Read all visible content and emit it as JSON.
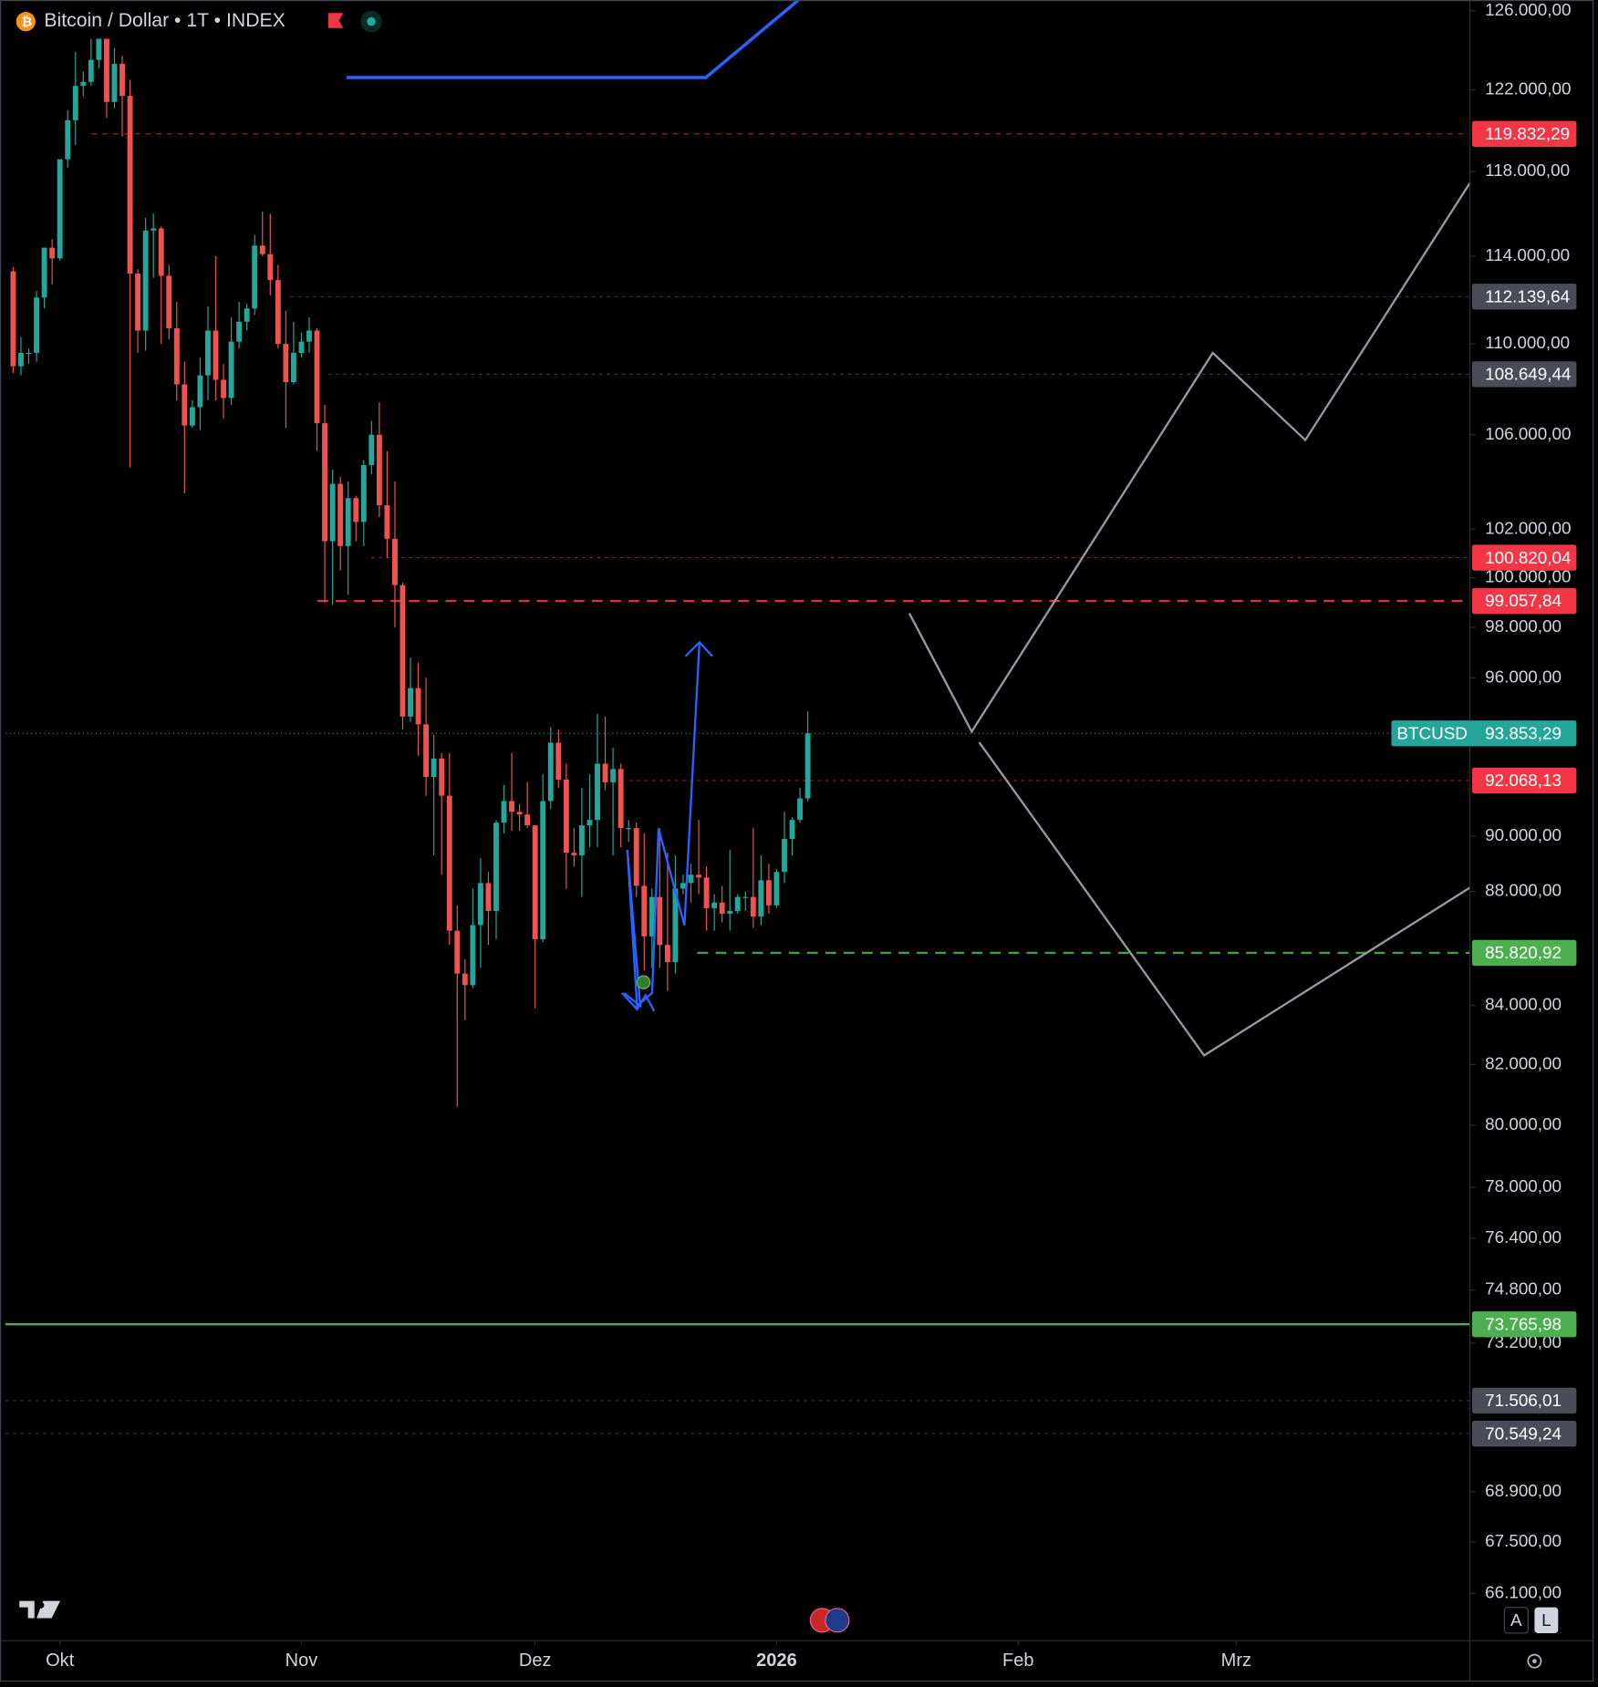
{
  "chart_data": {
    "type": "candlestick",
    "title": "Bitcoin / Dollar • 1T • INDEX",
    "log_scale": true,
    "grid": false,
    "up_color": "#26a69a",
    "down_color": "#ef5350",
    "xlim": [
      -1,
      187
    ],
    "xticks": [
      {
        "value": 6,
        "label": "Okt"
      },
      {
        "value": 37,
        "label": "Nov"
      },
      {
        "value": 67,
        "label": "Dez"
      },
      {
        "value": 98,
        "label": "2026"
      },
      {
        "value": 129,
        "label": "Feb"
      },
      {
        "value": 157,
        "label": "Mrz"
      }
    ],
    "ylim": [
      64840,
      126550
    ],
    "yticks": [
      {
        "value": 126000,
        "label": "126.000,00"
      },
      {
        "value": 122000,
        "label": "122.000,00"
      },
      {
        "value": 118000,
        "label": "118.000,00"
      },
      {
        "value": 114000,
        "label": "114.000,00"
      },
      {
        "value": 110000,
        "label": "110.000,00"
      },
      {
        "value": 106000,
        "label": "106.000,00"
      },
      {
        "value": 102000,
        "label": "102.000,00"
      },
      {
        "value": 100000,
        "label": "100.000,00"
      },
      {
        "value": 98000,
        "label": "98.000,00"
      },
      {
        "value": 96000,
        "label": "96.000,00"
      },
      {
        "value": 90000,
        "label": "90.000,00"
      },
      {
        "value": 88000,
        "label": "88.000,00"
      },
      {
        "value": 84000,
        "label": "84.000,00"
      },
      {
        "value": 82000,
        "label": "82.000,00"
      },
      {
        "value": 80000,
        "label": "80.000,00"
      },
      {
        "value": 78000,
        "label": "78.000,00"
      },
      {
        "value": 76400,
        "label": "76.400,00"
      },
      {
        "value": 74800,
        "label": "74.800,00"
      },
      {
        "value": 73200,
        "label": "73.200,00"
      },
      {
        "value": 68900,
        "label": "68.900,00"
      },
      {
        "value": 67500,
        "label": "67.500,00"
      },
      {
        "value": 66100,
        "label": "66.100,00"
      }
    ],
    "open": [
      113300,
      109000,
      109600,
      109600,
      112100,
      114400,
      113900,
      118600,
      120500,
      122200,
      122400,
      123500,
      124700,
      121400,
      123300,
      121700,
      113200,
      110600,
      115200,
      115300,
      113100,
      110700,
      108200,
      106400,
      107200,
      108600,
      110600,
      108400,
      107600,
      110100,
      111000,
      111600,
      114500,
      114100,
      112900,
      110000,
      108300,
      109600,
      110100,
      110600,
      106500,
      101500,
      103900,
      101300,
      103300,
      102300,
      104700,
      106000,
      103000,
      101600,
      99700,
      94500,
      95600,
      94200,
      92200,
      92900,
      91500,
      86600,
      85100,
      84700,
      86800,
      88300,
      87300,
      90500,
      91300,
      90900,
      90800,
      90400,
      86300,
      91300,
      93500,
      92100,
      89400,
      89300,
      90400,
      90600,
      92700,
      92000,
      92500,
      90300,
      90300,
      88200,
      86400,
      87800,
      86100,
      85500,
      88100,
      88300,
      88600,
      88500,
      87400,
      87600,
      87200,
      87300,
      87800,
      87800,
      87100,
      88400,
      87500,
      88700,
      89900,
      90600,
      91400
    ],
    "high": [
      113500,
      110300,
      109800,
      112400,
      114400,
      114800,
      118600,
      121000,
      123900,
      122900,
      125600,
      126200,
      125100,
      124100,
      123700,
      122500,
      113400,
      115800,
      116000,
      115400,
      113600,
      111900,
      109200,
      107500,
      109400,
      111700,
      114000,
      109100,
      111200,
      111900,
      111800,
      115000,
      116100,
      116000,
      113600,
      111500,
      111000,
      110500,
      111200,
      110700,
      107300,
      104500,
      104200,
      104000,
      103400,
      104900,
      106600,
      107400,
      105300,
      104000,
      99800,
      96800,
      96600,
      96000,
      93800,
      93100,
      93100,
      87500,
      85600,
      88100,
      89200,
      88700,
      90600,
      91900,
      93100,
      91200,
      92000,
      90400,
      92300,
      94100,
      94000,
      92700,
      90300,
      91800,
      92300,
      94600,
      94500,
      93300,
      92700,
      90600,
      90500,
      90100,
      88100,
      90300,
      89400,
      89300,
      88600,
      89000,
      90600,
      88900,
      87900,
      88200,
      89500,
      87900,
      88000,
      90300,
      89300,
      89000,
      88800,
      90900,
      90700,
      91800,
      94700
    ],
    "low": [
      108700,
      108600,
      109100,
      109200,
      111600,
      112700,
      113800,
      118200,
      119300,
      121700,
      122200,
      123100,
      120600,
      121100,
      119700,
      104600,
      109600,
      109700,
      113000,
      110000,
      110200,
      107500,
      103500,
      106300,
      106200,
      107500,
      107500,
      106700,
      107300,
      109800,
      110600,
      111300,
      114000,
      112200,
      109800,
      106300,
      108200,
      109400,
      109600,
      105300,
      99000,
      98900,
      100300,
      99300,
      101500,
      101300,
      104300,
      102500,
      100800,
      98000,
      94000,
      94300,
      93000,
      91500,
      89300,
      88600,
      86100,
      80600,
      83500,
      84600,
      85300,
      86100,
      86300,
      90100,
      90200,
      90200,
      90300,
      83900,
      86200,
      91000,
      91800,
      88100,
      88900,
      87800,
      89600,
      89600,
      91700,
      89300,
      89600,
      89800,
      87800,
      85200,
      85300,
      85300,
      84500,
      85100,
      87900,
      87600,
      87900,
      86600,
      86600,
      86900,
      86600,
      87200,
      87300,
      86700,
      86800,
      87200,
      87400,
      88300,
      89300,
      90500,
      91300
    ],
    "close": [
      109000,
      109600,
      109600,
      112100,
      114400,
      113900,
      118600,
      120500,
      122200,
      122400,
      123500,
      124700,
      121400,
      123300,
      121700,
      113200,
      110600,
      115200,
      115300,
      113100,
      110700,
      108200,
      106400,
      107200,
      108600,
      110600,
      108400,
      107600,
      110100,
      111000,
      111600,
      114500,
      114100,
      112900,
      110000,
      108300,
      109600,
      110100,
      110600,
      106500,
      101500,
      103900,
      101300,
      103300,
      102300,
      104700,
      106000,
      103000,
      101600,
      99700,
      94500,
      95600,
      94200,
      92200,
      92900,
      91500,
      86600,
      85100,
      84700,
      86800,
      88300,
      87300,
      90500,
      91300,
      90900,
      90800,
      90400,
      86300,
      91300,
      93500,
      92100,
      89400,
      89300,
      90400,
      90600,
      92700,
      92000,
      92500,
      90300,
      90300,
      88200,
      86400,
      87800,
      86100,
      85500,
      88100,
      88300,
      88600,
      88500,
      87400,
      87600,
      87200,
      87300,
      87800,
      87800,
      87100,
      88400,
      87500,
      88700,
      89900,
      90600,
      91400,
      93853.29
    ],
    "last_price_name": "BTCUSD",
    "last_price_label": "93.853,29",
    "levels": [
      {
        "value": 119832.29,
        "label": "119.832,29",
        "color": "#f23645",
        "style": "dashed"
      },
      {
        "value": 112139.64,
        "label": "112.139,64",
        "color": "#5d606b",
        "style": "dotted"
      },
      {
        "value": 108649.44,
        "label": "108.649,44",
        "color": "#5d606b",
        "style": "dotted"
      },
      {
        "value": 100820.04,
        "label": "100.820,04",
        "color": "#f23645",
        "style": "dotted"
      },
      {
        "value": 99057.84,
        "label": "99.057,84",
        "color": "#f23645",
        "style": "bold-dashed"
      },
      {
        "value": 92068.13,
        "label": "92.068,13",
        "color": "#f23645",
        "style": "dotted"
      },
      {
        "value": 85820.92,
        "label": "85.820,92",
        "color": "#4caf50",
        "style": "bold-dashed"
      },
      {
        "value": 73765.98,
        "label": "73.765,98",
        "color": "#4caf50",
        "style": "solid"
      },
      {
        "value": 71506.01,
        "label": "71.506,01",
        "color": "#5d606b",
        "style": "dotted"
      },
      {
        "value": 70549.24,
        "label": "70.549,24",
        "color": "#5d606b",
        "style": "dotted"
      }
    ]
  },
  "toolbar": {
    "buttons": [
      "A",
      "L"
    ]
  }
}
